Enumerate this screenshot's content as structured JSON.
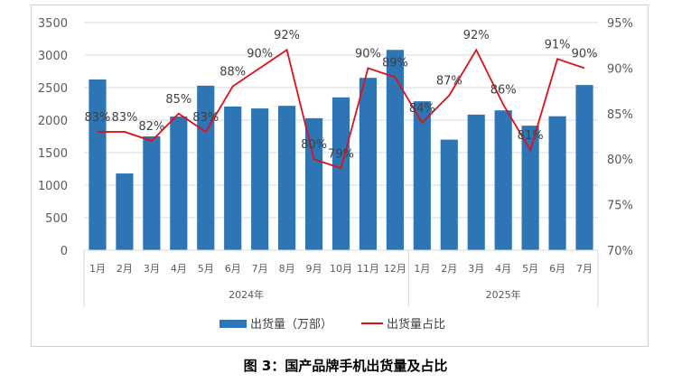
{
  "chart_data": {
    "type": "bar+line",
    "title": "图 3：国产品牌手机出货量及占比",
    "categories": [
      "1月",
      "2月",
      "3月",
      "4月",
      "5月",
      "6月",
      "7月",
      "8月",
      "9月",
      "10月",
      "11月",
      "12月",
      "1月",
      "2月",
      "3月",
      "4月",
      "5月",
      "6月",
      "7月"
    ],
    "groups": [
      {
        "label": "2024年",
        "count": 12
      },
      {
        "label": "2025年",
        "count": 7
      }
    ],
    "series": [
      {
        "name": "出货量（万部）",
        "type": "bar",
        "axis": "left",
        "color": "#2e75b6",
        "values": [
          2625,
          1180,
          1750,
          2055,
          2530,
          2210,
          2180,
          2220,
          2030,
          2350,
          2650,
          3080,
          2290,
          1700,
          2085,
          2150,
          1915,
          2060,
          2540
        ]
      },
      {
        "name": "出货量占比",
        "type": "line",
        "axis": "right",
        "color": "#e0101a",
        "values": [
          83,
          83,
          82,
          85,
          83,
          88,
          90,
          92,
          80,
          79,
          90,
          89,
          84,
          87,
          92,
          86,
          81,
          91,
          90
        ],
        "labels": [
          "83%",
          "83%",
          "82%",
          "85%",
          "83%",
          "88%",
          "90%",
          "92%",
          "80%",
          "79%",
          "90%",
          "89%",
          "84%",
          "87%",
          "92%",
          "86%",
          "81%",
          "91%",
          "90%"
        ]
      }
    ],
    "y_left": {
      "range": [
        0,
        3500
      ],
      "ticks": [
        "0",
        "500",
        "1000",
        "1500",
        "2000",
        "2500",
        "3000",
        "3500"
      ]
    },
    "y_right": {
      "range": [
        70,
        95
      ],
      "ticks": [
        "70%",
        "75%",
        "80%",
        "85%",
        "90%",
        "95%"
      ]
    },
    "grid": true,
    "legend": "bottom"
  }
}
